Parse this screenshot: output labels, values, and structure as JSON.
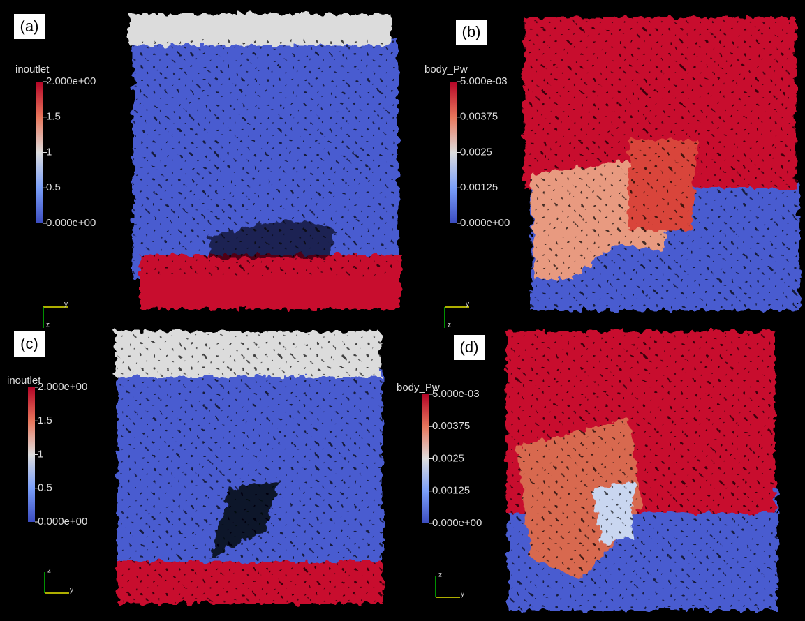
{
  "panels": [
    {
      "label": "(a)",
      "colorbar": {
        "title": "inoutlet",
        "ticks": [
          "2.000e+00",
          "1.5",
          "1",
          "0.5",
          "0.000e+00"
        ]
      },
      "axes": [
        "y",
        "z"
      ]
    },
    {
      "label": "(b)",
      "colorbar": {
        "title": "body_Pw",
        "ticks": [
          "5.000e-03",
          "0.00375",
          "0.0025",
          "0.00125",
          "0.000e+00"
        ]
      },
      "axes": [
        "y",
        "z"
      ]
    },
    {
      "label": "(c)",
      "colorbar": {
        "title": "inoutlet",
        "ticks": [
          "2.000e+00",
          "1.5",
          "1",
          "0.5",
          "0.000e+00"
        ]
      },
      "axes": [
        "z",
        "y"
      ]
    },
    {
      "label": "(d)",
      "colorbar": {
        "title": "body_Pw",
        "ticks": [
          "5.000e-03",
          "0.00375",
          "0.0025",
          "0.00125",
          "0.000e+00"
        ]
      },
      "axes": [
        "z",
        "y"
      ]
    }
  ]
}
